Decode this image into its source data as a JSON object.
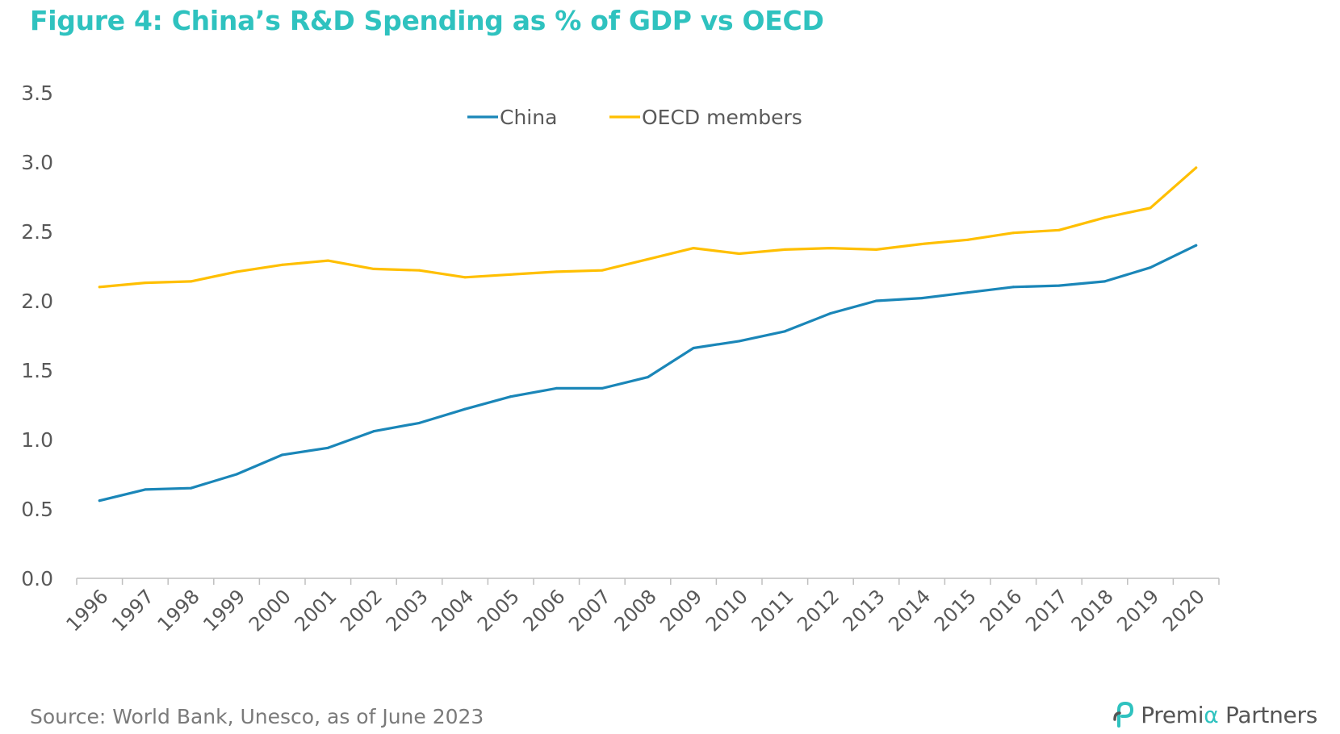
{
  "title": "Figure 4: China’s R&D Spending as % of GDP vs OECD",
  "source": "Source: World Bank, Unesco, as of June 2023",
  "brand": {
    "name_part1": "Premi",
    "name_accent": "α",
    "name_part2": " Partners"
  },
  "colors": {
    "title": "#2fc2bf",
    "china": "#1a86b8",
    "oecd": "#ffbf00",
    "axis": "#bfbfbf",
    "tick_text": "#595959",
    "source": "#7a7a7a",
    "brand_accent": "#2fc2bf"
  },
  "chart_data": {
    "type": "line",
    "title": "Figure 4: China’s R&D Spending as % of GDP vs OECD",
    "xlabel": "",
    "ylabel": "",
    "ylim": [
      0,
      3.5
    ],
    "yticks": [
      "0.0",
      "0.5",
      "1.0",
      "1.5",
      "2.0",
      "2.5",
      "3.0",
      "3.5"
    ],
    "grid": false,
    "legend_position": "top-center",
    "categories": [
      "1996",
      "1997",
      "1998",
      "1999",
      "2000",
      "2001",
      "2002",
      "2003",
      "2004",
      "2005",
      "2006",
      "2007",
      "2008",
      "2009",
      "2010",
      "2011",
      "2012",
      "2013",
      "2014",
      "2015",
      "2016",
      "2017",
      "2018",
      "2019",
      "2020"
    ],
    "series": [
      {
        "name": "China",
        "color": "#1a86b8",
        "values": [
          0.56,
          0.64,
          0.65,
          0.75,
          0.89,
          0.94,
          1.06,
          1.12,
          1.22,
          1.31,
          1.37,
          1.37,
          1.45,
          1.66,
          1.71,
          1.78,
          1.91,
          2.0,
          2.02,
          2.06,
          2.1,
          2.11,
          2.14,
          2.24,
          2.4
        ]
      },
      {
        "name": "OECD members",
        "color": "#ffbf00",
        "values": [
          2.1,
          2.13,
          2.14,
          2.21,
          2.26,
          2.29,
          2.23,
          2.22,
          2.17,
          2.19,
          2.21,
          2.22,
          2.3,
          2.38,
          2.34,
          2.37,
          2.38,
          2.37,
          2.41,
          2.44,
          2.49,
          2.51,
          2.6,
          2.67,
          2.96
        ]
      }
    ]
  }
}
